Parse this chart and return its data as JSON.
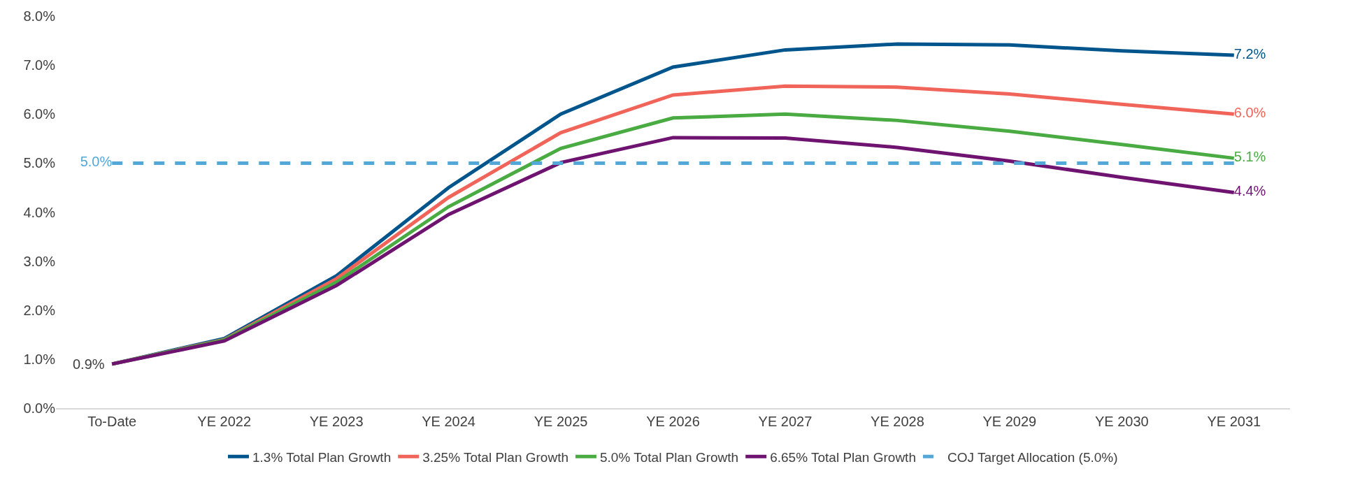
{
  "chart_data": {
    "type": "line",
    "categories": [
      "To-Date",
      "YE 2022",
      "YE 2023",
      "YE 2024",
      "YE 2025",
      "YE 2026",
      "YE 2027",
      "YE 2028",
      "YE 2029",
      "YE 2030",
      "YE 2031"
    ],
    "series": [
      {
        "name": "1.3% Total Plan Growth",
        "color": "#00558c",
        "values": [
          0.9,
          1.42,
          2.7,
          4.5,
          6.0,
          6.96,
          7.31,
          7.43,
          7.41,
          7.29,
          7.2
        ],
        "value_labels": [
          null,
          null,
          null,
          null,
          null,
          null,
          null,
          null,
          null,
          null,
          "7.2%"
        ]
      },
      {
        "name": "3.25% Total Plan Growth",
        "color": "#f0645a",
        "values": [
          0.9,
          1.4,
          2.64,
          4.3,
          5.62,
          6.39,
          6.57,
          6.55,
          6.41,
          6.2,
          6.0
        ],
        "value_labels": [
          null,
          null,
          null,
          null,
          null,
          null,
          null,
          null,
          null,
          null,
          "6.0%"
        ]
      },
      {
        "name": "5.0% Total Plan Growth",
        "color": "#4aab43",
        "values": [
          0.9,
          1.39,
          2.57,
          4.11,
          5.3,
          5.92,
          6.0,
          5.87,
          5.65,
          5.38,
          5.1
        ],
        "value_labels": [
          null,
          null,
          null,
          null,
          null,
          null,
          null,
          null,
          null,
          null,
          "5.1%"
        ]
      },
      {
        "name": "6.65% Total Plan Growth",
        "color": "#6e1470",
        "values": [
          0.9,
          1.37,
          2.5,
          3.95,
          5.01,
          5.52,
          5.51,
          5.32,
          5.04,
          4.71,
          4.4
        ],
        "value_labels": [
          null,
          null,
          null,
          null,
          null,
          null,
          null,
          null,
          null,
          null,
          "4.4%"
        ]
      },
      {
        "name": "COJ Target Allocation (5.0%)",
        "color": "#54a8d8",
        "line_style": "dashed",
        "values": [
          5.0,
          5.0,
          5.0,
          5.0,
          5.0,
          5.0,
          5.0,
          5.0,
          5.0,
          5.0,
          5.0
        ],
        "value_labels": [
          "5.0%",
          null,
          null,
          null,
          null,
          null,
          null,
          null,
          null,
          null,
          null
        ]
      }
    ],
    "annotations": [
      {
        "text": "0.9%",
        "x": "To-Date",
        "y": 0.9
      }
    ],
    "ylim": [
      0,
      8
    ],
    "yticks": [
      {
        "value": 0,
        "label": "0.0%"
      },
      {
        "value": 1,
        "label": "1.0%"
      },
      {
        "value": 2,
        "label": "2.0%"
      },
      {
        "value": 3,
        "label": "3.0%"
      },
      {
        "value": 4,
        "label": "4.0%"
      },
      {
        "value": 5,
        "label": "5.0%"
      },
      {
        "value": 6,
        "label": "6.0%"
      },
      {
        "value": 7,
        "label": "7.0%"
      },
      {
        "value": 8,
        "label": "8.0%"
      }
    ],
    "grid": false,
    "legend": "bottom"
  }
}
